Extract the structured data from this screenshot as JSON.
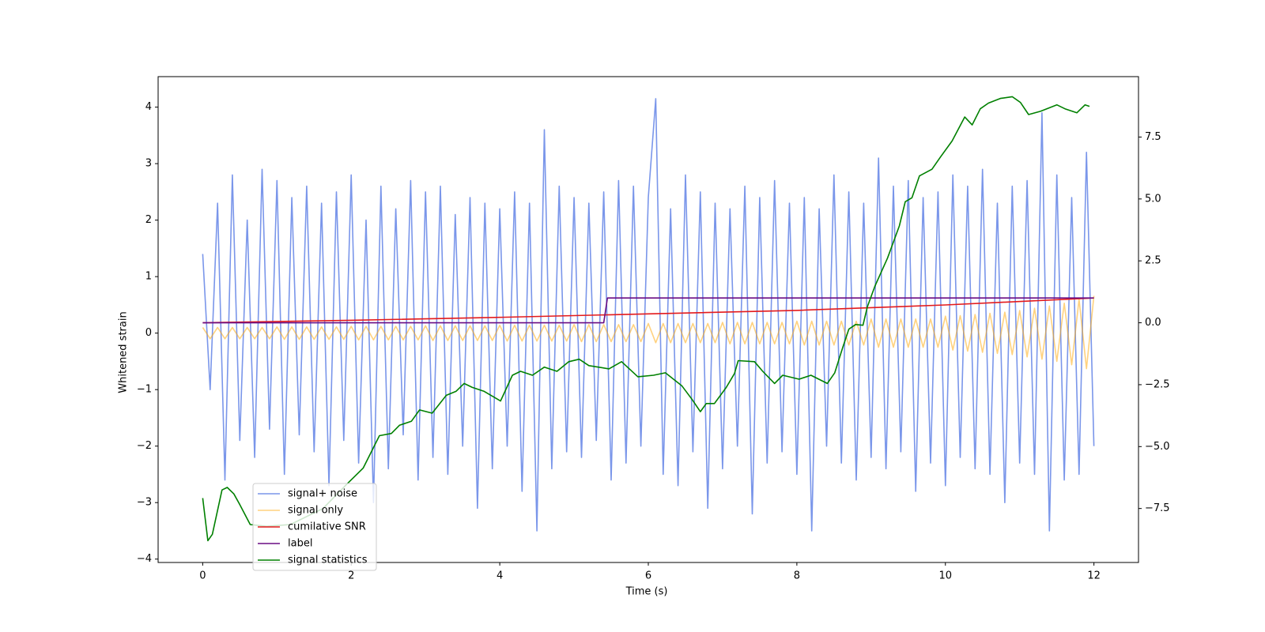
{
  "chart_data": {
    "type": "line",
    "xlabel": "Time (s)",
    "ylabel": "Whitened strain",
    "xlim": [
      -0.6,
      12.6
    ],
    "ylim": [
      -4.06,
      4.54
    ],
    "y2lim": [
      -9.68,
      9.94
    ],
    "xticks": [
      0,
      2,
      4,
      6,
      8,
      10,
      12
    ],
    "yticks": [
      {
        "value": -4,
        "label": "−4"
      },
      {
        "value": -3,
        "label": "−3"
      },
      {
        "value": -2,
        "label": "−2"
      },
      {
        "value": -1,
        "label": "−1"
      },
      0,
      1,
      2,
      3,
      4
    ],
    "y2ticks": [
      {
        "value": -7.5,
        "label": "−7.5"
      },
      {
        "value": -5,
        "label": "−5.0"
      },
      {
        "value": -2.5,
        "label": "−2.5"
      },
      {
        "value": 0,
        "label": "0.0"
      },
      2.5,
      {
        "value": 5,
        "label": "5.0"
      },
      7.5
    ],
    "legend": "lower left",
    "series": [
      {
        "name": "signal+ noise",
        "color": "#4169e1",
        "alpha": 0.7,
        "axis": "y",
        "x": [
          0,
          0.1,
          0.2,
          0.3,
          0.4,
          0.5,
          0.6,
          0.7,
          0.8,
          0.9,
          1,
          1.1,
          1.2,
          1.3,
          1.4,
          1.5,
          1.6,
          1.7,
          1.8,
          1.9,
          2,
          2.1,
          2.2,
          2.3,
          2.4,
          2.5,
          2.6,
          2.7,
          2.8,
          2.9,
          3,
          3.1,
          3.2,
          3.3,
          3.4,
          3.5,
          3.6,
          3.7,
          3.8,
          3.9,
          4,
          4.1,
          4.2,
          4.3,
          4.4,
          4.5,
          4.6,
          4.7,
          4.8,
          4.9,
          5,
          5.1,
          5.2,
          5.3,
          5.4,
          5.5,
          5.6,
          5.7,
          5.8,
          5.9,
          6,
          6.1,
          6.2,
          6.3,
          6.4,
          6.5,
          6.6,
          6.7,
          6.8,
          6.9,
          7,
          7.1,
          7.2,
          7.3,
          7.4,
          7.5,
          7.6,
          7.7,
          7.8,
          7.9,
          8,
          8.1,
          8.2,
          8.3,
          8.4,
          8.5,
          8.6,
          8.7,
          8.8,
          8.9,
          9,
          9.1,
          9.2,
          9.3,
          9.4,
          9.5,
          9.6,
          9.7,
          9.8,
          9.9,
          10,
          10.1,
          10.2,
          10.3,
          10.4,
          10.5,
          10.6,
          10.7,
          10.8,
          10.9,
          11,
          11.1,
          11.2,
          11.3,
          11.4,
          11.5,
          11.6,
          11.7,
          11.8,
          11.9,
          12
        ],
        "values": [
          1.4,
          -1.0,
          2.3,
          -2.6,
          2.8,
          -1.9,
          2.0,
          -2.2,
          2.9,
          -1.7,
          2.7,
          -2.5,
          2.4,
          -1.8,
          2.6,
          -2.1,
          2.3,
          -2.7,
          2.5,
          -1.9,
          2.8,
          -2.3,
          2.0,
          -3.0,
          2.6,
          -2.4,
          2.2,
          -1.8,
          2.7,
          -2.6,
          2.5,
          -2.2,
          2.6,
          -2.5,
          2.1,
          -2.0,
          2.4,
          -3.1,
          2.3,
          -2.4,
          2.2,
          -2.0,
          2.5,
          -2.8,
          2.3,
          -3.5,
          3.6,
          -2.4,
          2.6,
          -2.1,
          2.4,
          -2.2,
          2.3,
          -1.9,
          2.5,
          -2.6,
          2.7,
          -2.3,
          2.6,
          -2.0,
          2.4,
          4.15,
          -2.5,
          2.2,
          -2.7,
          2.8,
          -2.1,
          2.5,
          -3.1,
          2.3,
          -2.4,
          2.2,
          -2.0,
          2.6,
          -3.2,
          2.4,
          -2.3,
          2.7,
          -2.1,
          2.3,
          -2.5,
          2.4,
          -3.5,
          2.2,
          -2.0,
          2.8,
          -2.3,
          2.5,
          -2.6,
          2.3,
          -2.2,
          3.1,
          -2.4,
          2.6,
          -2.1,
          2.7,
          -2.8,
          2.4,
          -2.3,
          2.5,
          -2.7,
          2.8,
          -2.2,
          2.6,
          -2.4,
          2.9,
          -2.5,
          2.3,
          -3.0,
          2.6,
          -2.3,
          2.7,
          -2.5,
          3.9,
          -3.5,
          2.8,
          -2.6,
          2.4,
          -2.5,
          3.2,
          -2.0
        ]
      },
      {
        "name": "signal only",
        "color": "#ffa500",
        "alpha": 0.5,
        "axis": "y",
        "x": [
          0,
          0.1,
          0.2,
          0.3,
          0.4,
          0.5,
          0.6,
          0.7,
          0.8,
          0.9,
          1,
          1.1,
          1.2,
          1.3,
          1.4,
          1.5,
          1.6,
          1.7,
          1.8,
          1.9,
          2,
          2.1,
          2.2,
          2.3,
          2.4,
          2.5,
          2.6,
          2.7,
          2.8,
          2.9,
          3,
          3.1,
          3.2,
          3.3,
          3.4,
          3.5,
          3.6,
          3.7,
          3.8,
          3.9,
          4,
          4.1,
          4.2,
          4.3,
          4.4,
          4.5,
          4.6,
          4.7,
          4.8,
          4.9,
          5,
          5.1,
          5.2,
          5.3,
          5.4,
          5.5,
          5.6,
          5.7,
          5.8,
          5.9,
          6,
          6.1,
          6.2,
          6.3,
          6.4,
          6.5,
          6.6,
          6.7,
          6.8,
          6.9,
          7,
          7.1,
          7.2,
          7.3,
          7.4,
          7.5,
          7.6,
          7.7,
          7.8,
          7.9,
          8,
          8.1,
          8.2,
          8.3,
          8.4,
          8.5,
          8.6,
          8.7,
          8.8,
          8.9,
          9,
          9.1,
          9.2,
          9.3,
          9.4,
          9.5,
          9.6,
          9.7,
          9.8,
          9.9,
          10,
          10.1,
          10.2,
          10.3,
          10.4,
          10.5,
          10.6,
          10.7,
          10.8,
          10.9,
          11,
          11.1,
          11.2,
          11.3,
          11.4,
          11.5,
          11.6,
          11.7,
          11.8,
          11.9,
          12
        ],
        "values": [
          0.1,
          -0.1,
          0.1,
          -0.1,
          0.1,
          -0.1,
          0.1,
          -0.1,
          0.1,
          -0.1,
          0.11,
          -0.11,
          0.11,
          -0.11,
          0.11,
          -0.11,
          0.11,
          -0.11,
          0.11,
          -0.11,
          0.12,
          -0.12,
          0.12,
          -0.12,
          0.12,
          -0.12,
          0.12,
          -0.12,
          0.12,
          -0.12,
          0.13,
          -0.13,
          0.13,
          -0.13,
          0.13,
          -0.13,
          0.13,
          -0.13,
          0.13,
          -0.13,
          0.14,
          -0.14,
          0.14,
          -0.14,
          0.14,
          -0.14,
          0.14,
          -0.14,
          0.14,
          -0.14,
          0.15,
          -0.15,
          0.15,
          -0.15,
          0.15,
          -0.15,
          0.15,
          -0.15,
          0.15,
          -0.15,
          0.17,
          -0.17,
          0.17,
          -0.17,
          0.17,
          -0.17,
          0.17,
          -0.17,
          0.17,
          -0.17,
          0.19,
          -0.19,
          0.19,
          -0.19,
          0.19,
          -0.19,
          0.19,
          -0.19,
          0.19,
          -0.19,
          0.21,
          -0.21,
          0.21,
          -0.21,
          0.21,
          -0.21,
          0.21,
          -0.21,
          0.21,
          -0.21,
          0.25,
          -0.25,
          0.25,
          -0.25,
          0.25,
          -0.25,
          0.25,
          -0.25,
          0.25,
          -0.25,
          0.3,
          -0.3,
          0.31,
          -0.32,
          0.33,
          -0.34,
          0.35,
          -0.36,
          0.37,
          -0.38,
          0.4,
          -0.42,
          0.44,
          -0.46,
          0.48,
          -0.5,
          0.53,
          -0.56,
          0.6,
          -0.63,
          0.66
        ]
      },
      {
        "name": "cumilative SNR",
        "color": "#e31a1c",
        "alpha": 1,
        "axis": "y2",
        "x": [
          0,
          2,
          4,
          6,
          8,
          10,
          12
        ],
        "values": [
          0,
          0.1,
          0.22,
          0.36,
          0.5,
          0.72,
          1.0
        ]
      },
      {
        "name": "label",
        "color": "#6a0d83",
        "alpha": 1,
        "axis": "y2",
        "x": [
          0,
          5.4,
          5.45,
          12
        ],
        "values": [
          0,
          0,
          1,
          1
        ]
      },
      {
        "name": "signal statistics",
        "color": "#008000",
        "alpha": 1,
        "axis": "y2",
        "x": [
          0,
          0.07,
          0.13,
          0.26,
          0.33,
          0.42,
          0.5,
          0.64,
          0.86,
          1.18,
          1.62,
          1.94,
          2.16,
          2.38,
          2.54,
          2.65,
          2.81,
          2.92,
          3.09,
          3.28,
          3.41,
          3.52,
          3.63,
          3.79,
          4.01,
          4.17,
          4.28,
          4.44,
          4.6,
          4.77,
          4.93,
          5.07,
          5.2,
          5.47,
          5.64,
          5.86,
          6.07,
          6.23,
          6.45,
          6.59,
          6.7,
          6.78,
          6.89,
          7.05,
          7.16,
          7.21,
          7.43,
          7.54,
          7.7,
          7.81,
          8.03,
          8.19,
          8.41,
          8.51,
          8.62,
          8.7,
          8.79,
          8.89,
          8.95,
          9.05,
          9.22,
          9.38,
          9.46,
          9.55,
          9.65,
          9.82,
          9.93,
          10.09,
          10.26,
          10.36,
          10.47,
          10.58,
          10.74,
          10.9,
          11.01,
          11.12,
          11.28,
          11.5,
          11.61,
          11.77,
          11.88,
          11.94
        ],
        "values": [
          -7.08,
          -8.8,
          -8.54,
          -6.75,
          -6.65,
          -6.91,
          -7.34,
          -8.15,
          -8.22,
          -8.15,
          -7.5,
          -6.52,
          -5.87,
          -4.56,
          -4.47,
          -4.14,
          -3.98,
          -3.52,
          -3.65,
          -2.93,
          -2.77,
          -2.45,
          -2.61,
          -2.77,
          -3.16,
          -2.12,
          -1.96,
          -2.12,
          -1.79,
          -1.96,
          -1.57,
          -1.47,
          -1.73,
          -1.86,
          -1.57,
          -2.18,
          -2.12,
          -2.02,
          -2.54,
          -3.1,
          -3.59,
          -3.26,
          -3.26,
          -2.61,
          -2.05,
          -1.53,
          -1.57,
          -1.96,
          -2.45,
          -2.12,
          -2.28,
          -2.12,
          -2.45,
          -2.02,
          -0.98,
          -0.26,
          -0.07,
          -0.1,
          0.65,
          1.47,
          2.61,
          3.91,
          4.89,
          5.05,
          5.93,
          6.2,
          6.68,
          7.34,
          8.31,
          7.99,
          8.64,
          8.87,
          9.06,
          9.13,
          8.9,
          8.41,
          8.54,
          8.8,
          8.64,
          8.48,
          8.8,
          8.74
        ]
      }
    ]
  }
}
